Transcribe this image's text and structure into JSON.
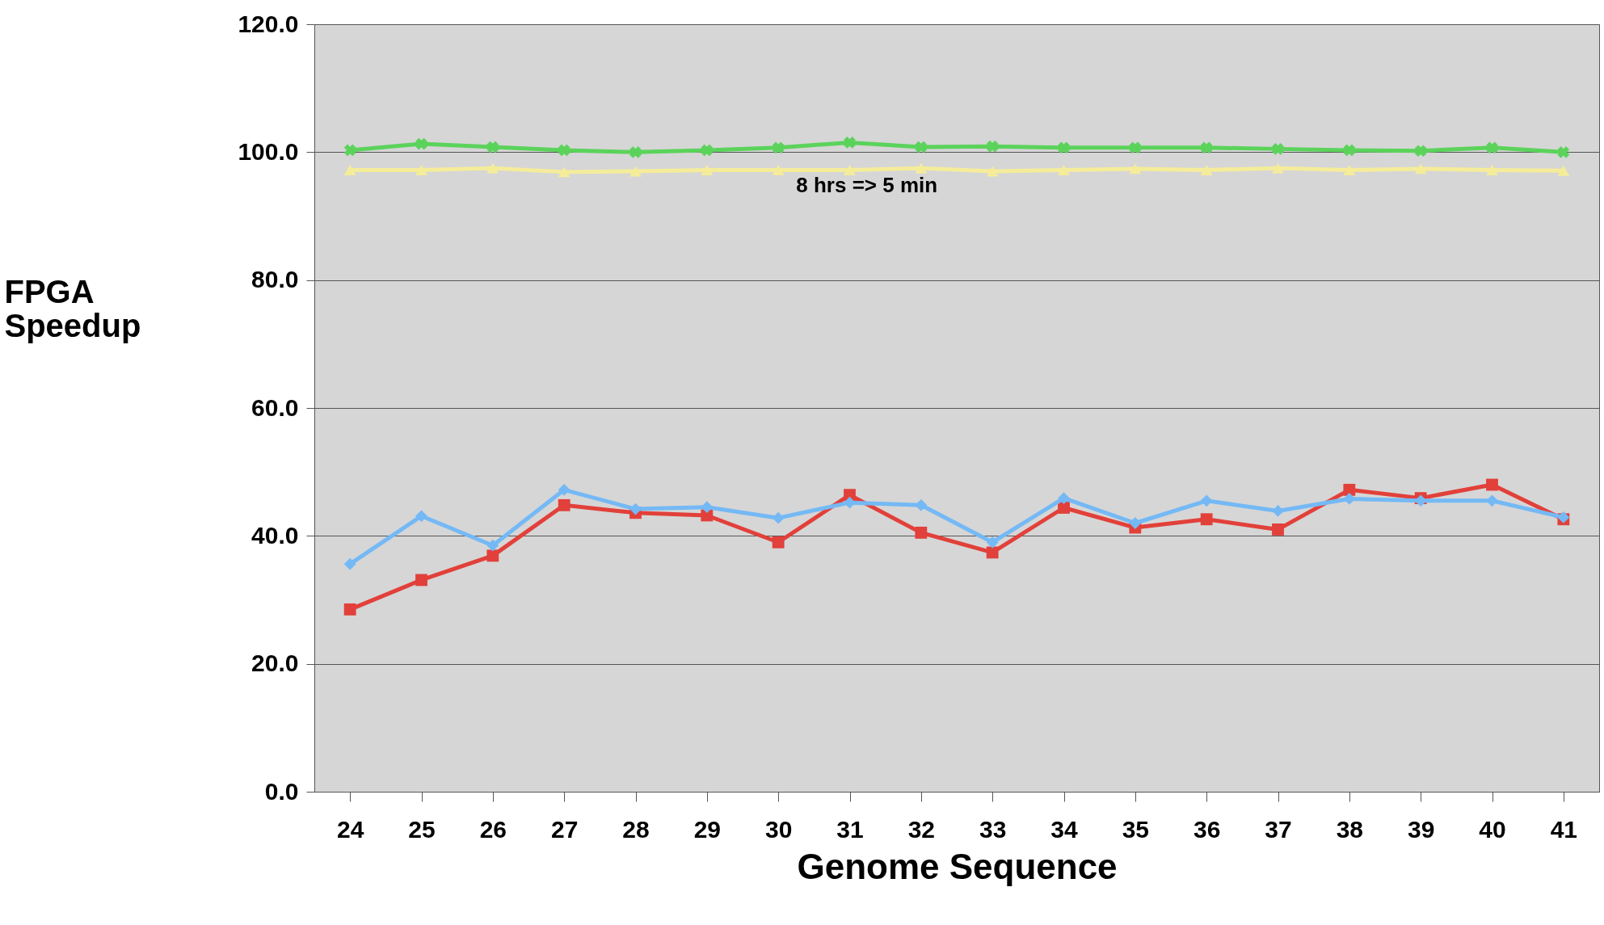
{
  "chart_data": {
    "type": "line",
    "xlabel": "Genome Sequence",
    "ylabel": "FPGA Speedup",
    "categories": [
      "24",
      "25",
      "26",
      "27",
      "28",
      "29",
      "30",
      "31",
      "32",
      "33",
      "34",
      "35",
      "36",
      "37",
      "38",
      "39",
      "40",
      "41"
    ],
    "series": [
      {
        "color": "#e2403a",
        "marker": "square",
        "values": [
          28.5,
          33.1,
          36.9,
          44.8,
          43.6,
          43.2,
          39.0,
          46.4,
          40.5,
          37.4,
          44.4,
          41.3,
          42.6,
          41.0,
          47.2,
          45.9,
          48.0,
          42.6
        ]
      },
      {
        "color": "#74b9f5",
        "marker": "diamond",
        "values": [
          35.6,
          43.1,
          38.5,
          47.2,
          44.2,
          44.5,
          42.8,
          45.2,
          44.8,
          39.0,
          45.9,
          42.0,
          45.5,
          43.9,
          45.8,
          45.5,
          45.5,
          42.9
        ]
      },
      {
        "color": "#f5ec9a",
        "marker": "triangle",
        "values": [
          97.2,
          97.2,
          97.5,
          96.9,
          97.0,
          97.2,
          97.2,
          97.2,
          97.5,
          97.0,
          97.2,
          97.4,
          97.2,
          97.5,
          97.2,
          97.4,
          97.2,
          97.1
        ]
      },
      {
        "color": "#5bd35b",
        "marker": "cross",
        "values": [
          100.3,
          101.3,
          100.8,
          100.3,
          100.0,
          100.3,
          100.7,
          101.5,
          100.8,
          100.9,
          100.7,
          100.7,
          100.7,
          100.5,
          100.3,
          100.2,
          100.7,
          100.0
        ]
      }
    ],
    "ylim": [
      0,
      120
    ],
    "yticks": [
      {
        "value": 0,
        "label": "0.0"
      },
      {
        "value": 20,
        "label": "20.0"
      },
      {
        "value": 40,
        "label": "40.0"
      },
      {
        "value": 60,
        "label": "60.0"
      },
      {
        "value": 80,
        "label": "80.0"
      },
      {
        "value": 100,
        "label": "100.0"
      },
      {
        "value": 120,
        "label": "120.0"
      }
    ],
    "grid": "y",
    "annotations": [
      "8 hrs => 5 min"
    ]
  }
}
